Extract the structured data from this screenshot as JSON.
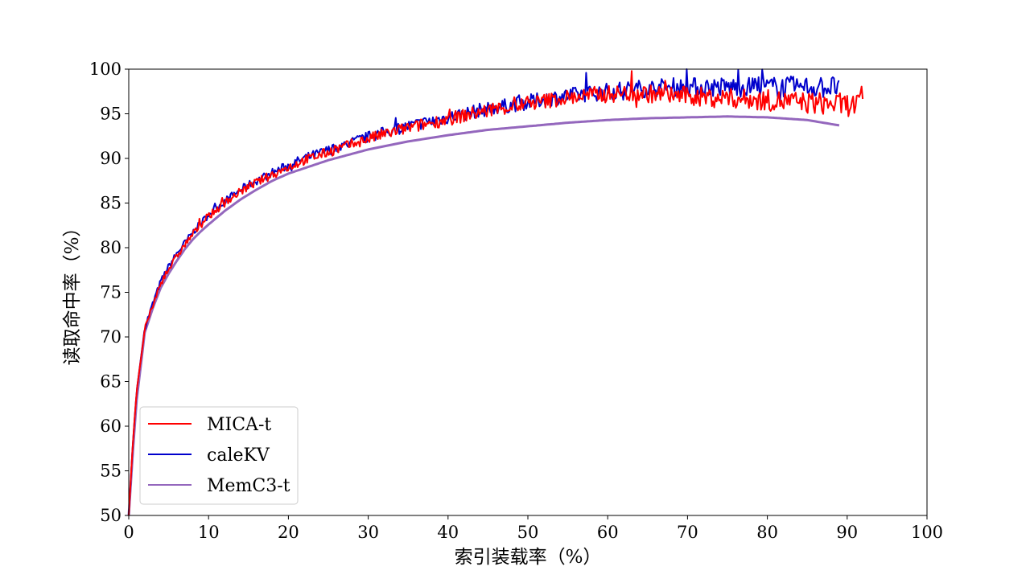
{
  "chart_data": {
    "type": "line",
    "title": "",
    "xlabel": "索引装载率（%）",
    "ylabel": "读取命中率（%）",
    "xlim": [
      0,
      100
    ],
    "ylim": [
      50,
      100
    ],
    "xticks": [
      0,
      10,
      20,
      30,
      40,
      50,
      60,
      70,
      80,
      90,
      100
    ],
    "yticks": [
      50,
      55,
      60,
      65,
      70,
      75,
      80,
      85,
      90,
      95,
      100
    ],
    "grid": false,
    "legend_position": "bottom-left",
    "series": [
      {
        "name": "MICA-t",
        "color": "#ff0000",
        "noisy": true,
        "x": [
          0,
          0.5,
          1,
          2,
          3,
          4,
          5,
          6,
          7,
          8,
          9,
          10,
          12,
          14,
          16,
          18,
          20,
          22,
          24,
          26,
          28,
          30,
          32,
          34,
          36,
          38,
          40,
          42,
          44,
          46,
          48,
          50,
          52,
          54,
          56,
          58,
          60,
          62,
          64,
          66,
          68,
          70,
          72,
          74,
          76,
          78,
          80,
          82,
          84,
          86,
          88,
          90,
          91,
          92
        ],
        "y": [
          50,
          58,
          64,
          70.8,
          73.5,
          76,
          77.6,
          79,
          80.3,
          81.5,
          82.5,
          83.5,
          85,
          86.3,
          87.3,
          88.2,
          89,
          89.8,
          90.4,
          91,
          91.6,
          92.2,
          92.7,
          93.2,
          93.6,
          94,
          94.4,
          94.8,
          95.2,
          95.5,
          95.8,
          96.1,
          96.4,
          96.7,
          96.9,
          97.1,
          97.2,
          97.3,
          97.3,
          97.2,
          97.1,
          97,
          96.9,
          96.8,
          96.7,
          96.6,
          96.5,
          96.4,
          96.3,
          96.2,
          96.1,
          96,
          96,
          96
        ]
      },
      {
        "name": "caleKV",
        "color": "#0000cc",
        "noisy": true,
        "x": [
          0,
          0.5,
          1,
          2,
          3,
          4,
          5,
          6,
          7,
          8,
          9,
          10,
          12,
          14,
          16,
          18,
          20,
          22,
          24,
          26,
          28,
          30,
          32,
          34,
          36,
          38,
          40,
          42,
          44,
          46,
          48,
          50,
          52,
          54,
          56,
          58,
          60,
          62,
          64,
          66,
          68,
          70,
          72,
          74,
          76,
          78,
          80,
          82,
          84,
          86,
          88,
          89
        ],
        "y": [
          50,
          58,
          64,
          71,
          73.7,
          76.2,
          77.9,
          79.3,
          80.5,
          81.7,
          82.7,
          83.7,
          85.2,
          86.5,
          87.5,
          88.4,
          89.2,
          90,
          90.6,
          91.2,
          91.8,
          92.4,
          92.9,
          93.4,
          93.8,
          94.2,
          94.6,
          95,
          95.4,
          95.7,
          96,
          96.3,
          96.6,
          96.9,
          97.1,
          97.3,
          97.5,
          97.7,
          97.8,
          97.9,
          98,
          98,
          98,
          98,
          98,
          98,
          98,
          98,
          98,
          98,
          98,
          98
        ]
      },
      {
        "name": "MemC3-t",
        "color": "#9467bd",
        "noisy": false,
        "x": [
          0,
          0.5,
          1,
          2,
          3,
          4,
          5,
          6,
          7,
          8,
          9,
          10,
          12,
          14,
          16,
          18,
          20,
          25,
          30,
          35,
          40,
          45,
          50,
          55,
          60,
          65,
          70,
          75,
          80,
          85,
          89
        ],
        "y": [
          50,
          57,
          63,
          70.5,
          73.2,
          75.5,
          77.1,
          78.5,
          79.8,
          80.9,
          81.8,
          82.6,
          84.1,
          85.4,
          86.5,
          87.5,
          88.3,
          89.8,
          91,
          91.9,
          92.6,
          93.2,
          93.6,
          94,
          94.3,
          94.5,
          94.6,
          94.7,
          94.6,
          94.3,
          93.7
        ]
      }
    ]
  }
}
